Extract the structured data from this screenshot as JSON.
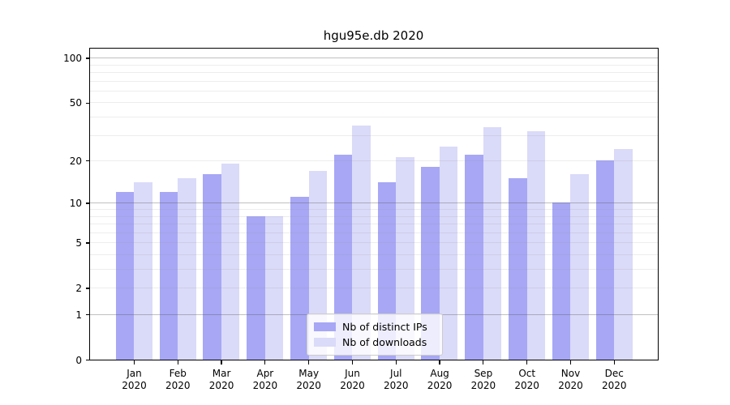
{
  "title": "hgu95e.db 2020",
  "chart_data": {
    "type": "bar",
    "title": "hgu95e.db 2020",
    "xlabel": "",
    "ylabel": "",
    "year_label": "2020",
    "categories": [
      "Jan",
      "Feb",
      "Mar",
      "Apr",
      "May",
      "Jun",
      "Jul",
      "Aug",
      "Sep",
      "Oct",
      "Nov",
      "Dec"
    ],
    "series": [
      {
        "name": "Nb of distinct IPs",
        "color": "#a7a7f5",
        "values": [
          12,
          12,
          16,
          8,
          11,
          22,
          14,
          18,
          22,
          15,
          10,
          20
        ]
      },
      {
        "name": "Nb of downloads",
        "color": "#dadaf9",
        "values": [
          14,
          15,
          19,
          8,
          17,
          35,
          21,
          25,
          34,
          32,
          16,
          24
        ]
      }
    ],
    "yscale": "log1p",
    "ylim": [
      0,
      115
    ],
    "yticks": [
      0,
      1,
      2,
      5,
      10,
      20,
      50,
      100
    ],
    "grid_major": [
      1,
      10,
      100
    ],
    "grid_minor": [
      2,
      3,
      4,
      5,
      6,
      7,
      8,
      9,
      20,
      30,
      40,
      50,
      60,
      70,
      80,
      90
    ],
    "grid": true,
    "legend_position": "bottom-center"
  },
  "legend": {
    "items": [
      {
        "label": "Nb of distinct IPs"
      },
      {
        "label": "Nb of downloads"
      }
    ]
  }
}
